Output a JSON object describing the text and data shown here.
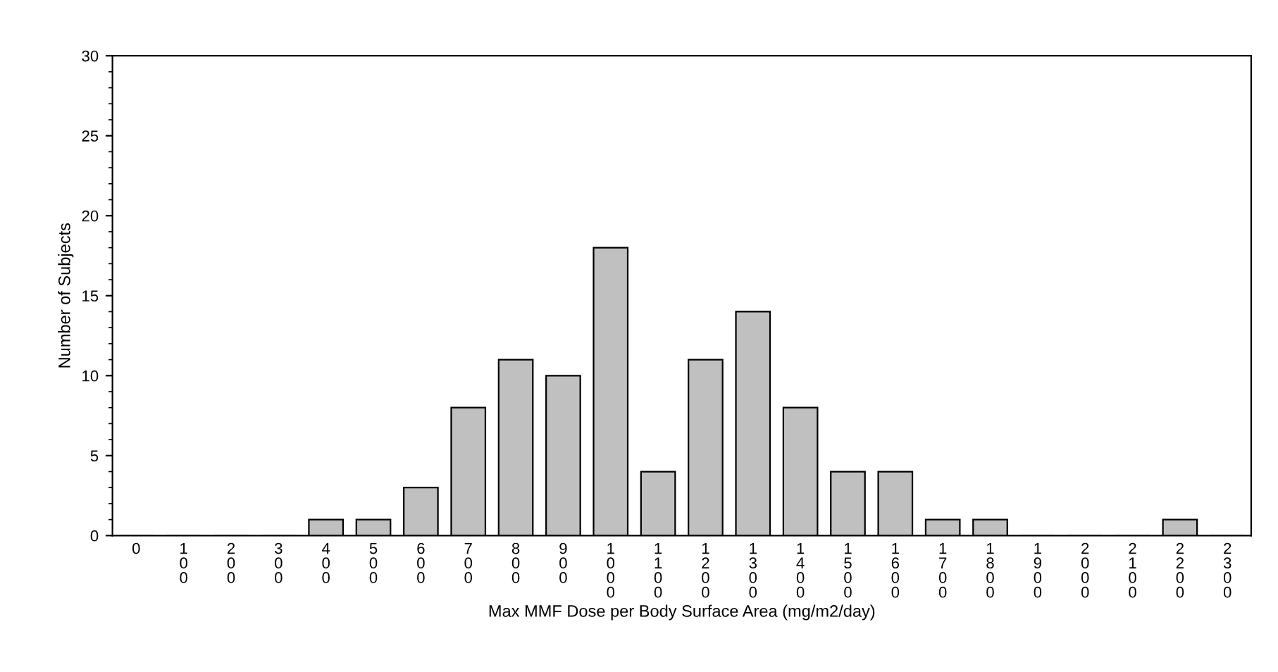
{
  "chart_data": {
    "type": "bar",
    "xlabel": "Max MMF Dose per Body Surface Area (mg/m2/day)",
    "ylabel": "Number of Subjects",
    "categories": [
      "0",
      "100",
      "200",
      "300",
      "400",
      "500",
      "600",
      "700",
      "800",
      "900",
      "1000",
      "1100",
      "1200",
      "1300",
      "1400",
      "1500",
      "1600",
      "1700",
      "1800",
      "1900",
      "2000",
      "2100",
      "2200",
      "2300"
    ],
    "values": [
      0,
      0,
      0,
      0,
      1,
      1,
      3,
      8,
      11,
      10,
      18,
      4,
      11,
      14,
      8,
      4,
      4,
      1,
      1,
      0,
      0,
      0,
      1,
      0
    ],
    "color": "#c0c0c0",
    "ylim": [
      0,
      30
    ],
    "yticks": [
      0,
      5,
      10,
      15,
      20,
      25,
      30
    ],
    "grid": false,
    "legend": false
  }
}
